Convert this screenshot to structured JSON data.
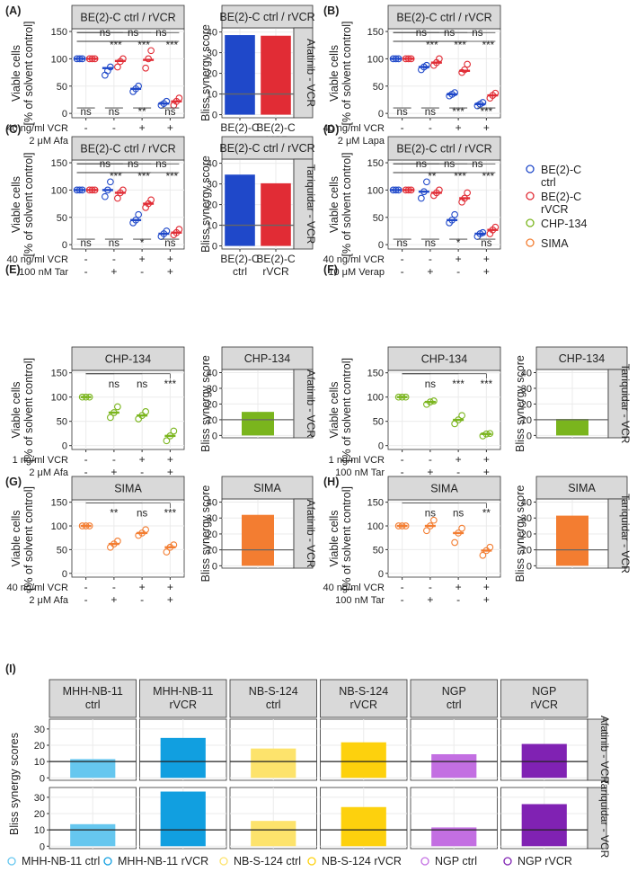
{
  "colors": {
    "be2c_ctrl": "#1f48c9",
    "be2c_rvcr": "#e12c35",
    "chp134": "#7ab51d",
    "sima": "#f37d31",
    "mhh_ctrl": "#66c7ef",
    "mhh_rvcr": "#119fe0",
    "nbs_ctrl": "#fde36c",
    "nbs_rvcr": "#fdd10d",
    "ngp_ctrl": "#c36fe2",
    "ngp_rvcr": "#8022b3",
    "strip": "#d9d9d9",
    "grid": "#ebebeb"
  },
  "panel_letters": [
    "(A)",
    "(B)",
    "(C)",
    "(D)",
    "(E)",
    "(F)",
    "(G)",
    "(H)",
    "(I)"
  ],
  "common": {
    "viability_ylabel": [
      "Viable cells",
      "[% of solvent control]"
    ],
    "bliss_ylabel": "Bliss synergy score",
    "bliss_ylabel_I": "Bliss synergy scores",
    "viab_ticks": [
      "0",
      "50",
      "100",
      "150"
    ],
    "bliss_ticks": [
      "0",
      "10",
      "20",
      "30",
      "40"
    ],
    "bliss_ticks_I": [
      "0",
      "10",
      "20",
      "30"
    ],
    "plus": "+",
    "minus": "-",
    "ns": "ns"
  },
  "strips": {
    "be2c": "BE(2)-C ctrl / rVCR",
    "chp": "CHP-134",
    "sima": "SIMA"
  },
  "facets": {
    "afa": "Afatinib - VCR",
    "tar": "Tariquidar - VCR"
  },
  "treatments": {
    "vcr40": "40 ng/ml VCR",
    "vcr1": "1 ng/ml VCR",
    "afa": "2 μM Afa",
    "lapa": "2 μM Lapa",
    "tar": "100 nM Tar",
    "verap": "10 μM Verap"
  },
  "legend_top": [
    {
      "label": [
        "BE(2)-C",
        "ctrl"
      ],
      "color_key": "be2c_ctrl"
    },
    {
      "label": [
        "BE(2)-C",
        "rVCR"
      ],
      "color_key": "be2c_rvcr"
    },
    {
      "label": [
        "CHP-134"
      ],
      "color_key": "chp134"
    },
    {
      "label": [
        "SIMA"
      ],
      "color_key": "sima"
    }
  ],
  "legend_bottom": [
    {
      "label": "MHH-NB-11 ctrl",
      "color_key": "mhh_ctrl"
    },
    {
      "label": "MHH-NB-11 rVCR",
      "color_key": "mhh_rvcr"
    },
    {
      "label": "NB-S-124 ctrl",
      "color_key": "nbs_ctrl"
    },
    {
      "label": "NB-S-124 rVCR",
      "color_key": "nbs_rvcr"
    },
    {
      "label": "NGP ctrl",
      "color_key": "ngp_ctrl"
    },
    {
      "label": "NGP rVCR",
      "color_key": "ngp_rvcr"
    }
  ],
  "chart_data": [
    {
      "id": "A",
      "type": "scatter",
      "ylim": [
        0,
        150
      ],
      "series": [
        {
          "name": "BE(2)-C ctrl",
          "color_key": "be2c_ctrl",
          "medians": [
            100,
            83,
            45,
            18
          ],
          "points": [
            [
              100,
              100,
              100
            ],
            [
              70,
              78,
              85
            ],
            [
              40,
              45,
              50
            ],
            [
              15,
              18,
              22
            ]
          ]
        },
        {
          "name": "BE(2)-C rVCR",
          "color_key": "be2c_rvcr",
          "medians": [
            100,
            96,
            98,
            22
          ],
          "points": [
            [
              100,
              100,
              100
            ],
            [
              85,
              95,
              100
            ],
            [
              83,
              100,
              115
            ],
            [
              15,
              22,
              28
            ]
          ]
        }
      ],
      "top_labels": [
        "ns",
        "***",
        "ns",
        "***",
        "ns",
        "***"
      ],
      "bottom_labels": [
        "ns",
        "ns",
        "**",
        "ns"
      ]
    },
    {
      "id": "A2",
      "type": "bar",
      "ylim": [
        0,
        42
      ],
      "categories": [
        [
          "BE(2)-C",
          "ctrl"
        ],
        [
          "BE(2)-C",
          "rVCR"
        ]
      ],
      "values": [
        38.5,
        38.2
      ],
      "color_keys": [
        "be2c_ctrl",
        "be2c_rvcr"
      ],
      "reference": 10
    },
    {
      "id": "B",
      "type": "scatter",
      "ylim": [
        0,
        150
      ],
      "series": [
        {
          "name": "BE(2)-C ctrl",
          "color_key": "be2c_ctrl",
          "medians": [
            100,
            85,
            35,
            17
          ],
          "points": [
            [
              100,
              100,
              100
            ],
            [
              80,
              85,
              88
            ],
            [
              32,
              35,
              38
            ],
            [
              14,
              17,
              20
            ]
          ]
        },
        {
          "name": "BE(2)-C rVCR",
          "color_key": "be2c_rvcr",
          "medians": [
            100,
            93,
            78,
            33
          ],
          "points": [
            [
              100,
              100,
              100
            ],
            [
              88,
              93,
              100
            ],
            [
              75,
              80,
              90
            ],
            [
              28,
              33,
              37
            ]
          ]
        }
      ],
      "top_labels": [
        "ns",
        "***",
        "ns",
        "***",
        "ns",
        "***"
      ],
      "bottom_labels": [
        "ns",
        "ns",
        "***",
        "***"
      ]
    },
    {
      "id": "C",
      "type": "scatter",
      "ylim": [
        0,
        150
      ],
      "series": [
        {
          "name": "BE(2)-C ctrl",
          "color_key": "be2c_ctrl",
          "medians": [
            100,
            100,
            45,
            20
          ],
          "points": [
            [
              100,
              100,
              100
            ],
            [
              88,
              100,
              115
            ],
            [
              40,
              45,
              55
            ],
            [
              15,
              20,
              25
            ]
          ]
        },
        {
          "name": "BE(2)-C rVCR",
          "color_key": "be2c_rvcr",
          "medians": [
            100,
            95,
            75,
            22
          ],
          "points": [
            [
              100,
              100,
              100
            ],
            [
              85,
              95,
              100
            ],
            [
              68,
              75,
              82
            ],
            [
              18,
              22,
              28
            ]
          ]
        }
      ],
      "top_labels": [
        "ns",
        "***",
        "ns",
        "***",
        "ns",
        "***"
      ],
      "bottom_labels": [
        "ns",
        "ns",
        "*",
        "ns"
      ]
    },
    {
      "id": "C2",
      "type": "bar",
      "ylim": [
        0,
        42
      ],
      "categories": [
        [
          "BE(2)-C",
          "ctrl"
        ],
        [
          "BE(2)-C",
          "rVCR"
        ]
      ],
      "values": [
        34.5,
        30.3
      ],
      "color_keys": [
        "be2c_ctrl",
        "be2c_rvcr"
      ],
      "reference": 10
    },
    {
      "id": "D",
      "type": "scatter",
      "ylim": [
        0,
        150
      ],
      "series": [
        {
          "name": "BE(2)-C ctrl",
          "color_key": "be2c_ctrl",
          "medians": [
            100,
            97,
            45,
            20
          ],
          "points": [
            [
              100,
              100,
              100
            ],
            [
              85,
              97,
              115
            ],
            [
              40,
              45,
              55
            ],
            [
              15,
              20,
              22
            ]
          ]
        },
        {
          "name": "BE(2)-C rVCR",
          "color_key": "be2c_rvcr",
          "medians": [
            100,
            95,
            85,
            27
          ],
          "points": [
            [
              100,
              100,
              100
            ],
            [
              90,
              95,
              100
            ],
            [
              78,
              85,
              95
            ],
            [
              20,
              27,
              32
            ]
          ]
        }
      ],
      "top_labels": [
        "ns",
        "**",
        "ns",
        "***",
        "ns",
        "***"
      ],
      "bottom_labels": [
        "ns",
        "ns",
        "*",
        "ns"
      ]
    },
    {
      "id": "E",
      "type": "scatter",
      "ylim": [
        0,
        150
      ],
      "series": [
        {
          "name": "CHP-134",
          "color_key": "chp134",
          "medians": [
            100,
            68,
            62,
            20
          ],
          "points": [
            [
              100,
              100,
              100
            ],
            [
              58,
              68,
              80
            ],
            [
              55,
              62,
              70
            ],
            [
              10,
              20,
              30
            ]
          ]
        }
      ],
      "comparison_labels": [
        "ns",
        "ns",
        "***"
      ]
    },
    {
      "id": "E2",
      "type": "bar",
      "ylim": [
        0,
        42
      ],
      "categories": [
        ""
      ],
      "values": [
        15
      ],
      "color_keys": [
        "chp134"
      ],
      "reference": 10
    },
    {
      "id": "F",
      "type": "scatter",
      "ylim": [
        0,
        150
      ],
      "series": [
        {
          "name": "CHP-134",
          "color_key": "chp134",
          "medians": [
            100,
            90,
            53,
            24
          ],
          "points": [
            [
              100,
              100,
              100
            ],
            [
              85,
              90,
              92
            ],
            [
              45,
              53,
              62
            ],
            [
              20,
              24,
              25
            ]
          ]
        }
      ],
      "comparison_labels": [
        "ns",
        "***",
        "***"
      ]
    },
    {
      "id": "F2",
      "type": "bar",
      "ylim": [
        0,
        42
      ],
      "categories": [
        ""
      ],
      "values": [
        10.5
      ],
      "color_keys": [
        "chp134"
      ],
      "reference": 10
    },
    {
      "id": "G",
      "type": "scatter",
      "ylim": [
        0,
        150
      ],
      "series": [
        {
          "name": "SIMA",
          "color_key": "sima",
          "medians": [
            100,
            62,
            85,
            55
          ],
          "points": [
            [
              100,
              100,
              100
            ],
            [
              55,
              62,
              68
            ],
            [
              80,
              85,
              92
            ],
            [
              45,
              55,
              60
            ]
          ]
        }
      ],
      "comparison_labels": [
        "**",
        "ns",
        "***"
      ]
    },
    {
      "id": "G2",
      "type": "bar",
      "ylim": [
        0,
        42
      ],
      "categories": [
        ""
      ],
      "values": [
        32
      ],
      "color_keys": [
        "sima"
      ],
      "reference": 10
    },
    {
      "id": "H",
      "type": "scatter",
      "ylim": [
        0,
        150
      ],
      "series": [
        {
          "name": "SIMA",
          "color_key": "sima",
          "medians": [
            100,
            100,
            85,
            48
          ],
          "points": [
            [
              100,
              100,
              100
            ],
            [
              90,
              100,
              112
            ],
            [
              65,
              85,
              95
            ],
            [
              38,
              48,
              55
            ]
          ]
        }
      ],
      "comparison_labels": [
        "ns",
        "ns",
        "**"
      ]
    },
    {
      "id": "H2",
      "type": "bar",
      "ylim": [
        0,
        42
      ],
      "categories": [
        ""
      ],
      "values": [
        31.5
      ],
      "color_keys": [
        "sima"
      ],
      "reference": 10
    },
    {
      "id": "I",
      "type": "bar",
      "ylim": [
        0,
        36
      ],
      "columns": [
        [
          "MHH-NB-11",
          "ctrl"
        ],
        [
          "MHH-NB-11",
          "rVCR"
        ],
        [
          "NB-S-124",
          "ctrl"
        ],
        [
          "NB-S-124",
          "rVCR"
        ],
        [
          "NGP",
          "ctrl"
        ],
        [
          "NGP",
          "rVCR"
        ]
      ],
      "color_keys": [
        "mhh_ctrl",
        "mhh_rvcr",
        "nbs_ctrl",
        "nbs_rvcr",
        "ngp_ctrl",
        "ngp_rvcr"
      ],
      "rows": [
        {
          "facet_key": "afa",
          "values": [
            11.5,
            24.5,
            18,
            21.8,
            14.5,
            20.8
          ]
        },
        {
          "facet_key": "tar",
          "values": [
            13.5,
            33.5,
            15.5,
            24,
            11.5,
            25.8
          ]
        }
      ],
      "reference": 10
    }
  ]
}
